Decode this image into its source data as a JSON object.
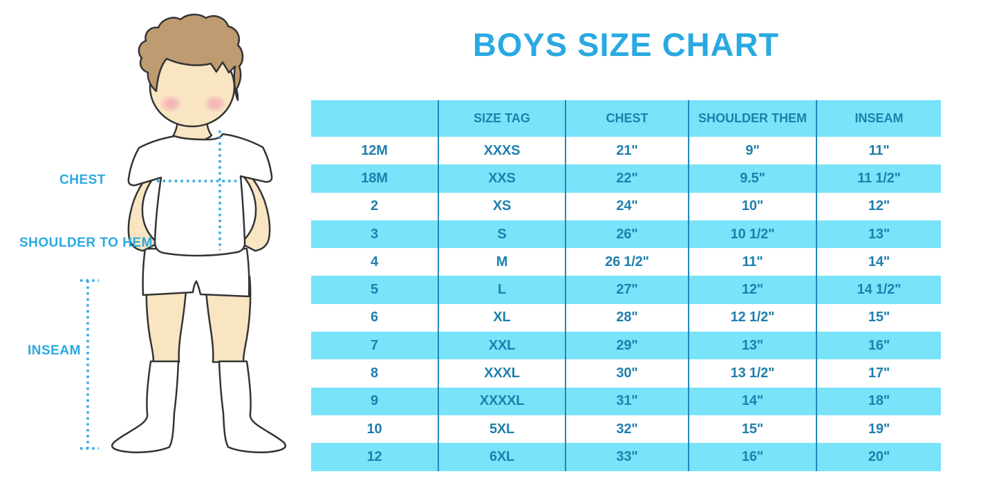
{
  "title": "BOYS SIZE CHART",
  "figure": {
    "chest_label": "CHEST",
    "shoulder_label": "SHOULDER TO HEM",
    "inseam_label": "INSEAM"
  },
  "chart_data": {
    "type": "table",
    "title": "BOYS SIZE CHART",
    "columns": [
      "",
      "SIZE TAG",
      "CHEST",
      "SHOULDER THEM",
      "INSEAM"
    ],
    "rows": [
      [
        "12M",
        "XXXS",
        "21\"",
        "9\"",
        "11\""
      ],
      [
        "18M",
        "XXS",
        "22\"",
        "9.5\"",
        "11 1/2\""
      ],
      [
        "2",
        "XS",
        "24\"",
        "10\"",
        "12\""
      ],
      [
        "3",
        "S",
        "26\"",
        "10 1/2\"",
        "13\""
      ],
      [
        "4",
        "M",
        "26 1/2\"",
        "11\"",
        "14\""
      ],
      [
        "5",
        "L",
        "27\"",
        "12\"",
        "14 1/2\""
      ],
      [
        "6",
        "XL",
        "28\"",
        "12 1/2\"",
        "15\""
      ],
      [
        "7",
        "XXL",
        "29\"",
        "13\"",
        "16\""
      ],
      [
        "8",
        "XXXL",
        "30\"",
        "13 1/2\"",
        "17\""
      ],
      [
        "9",
        "XXXXL",
        "31\"",
        "14\"",
        "18\""
      ],
      [
        "10",
        "5XL",
        "32\"",
        "15\"",
        "19\""
      ],
      [
        "12",
        "6XL",
        "33\"",
        "16\"",
        "20\""
      ]
    ],
    "layout": {
      "stripe_pattern": "alternating white/blue starting white",
      "grid": "vertical column separators only"
    }
  },
  "colors": {
    "accent_blue": "#29A9E1",
    "row_blue": "#79E3F9",
    "table_text_blue": "#1E7FAE",
    "grid_line_blue": "#1E87C0",
    "hair_brown": "#BE9B70",
    "skin": "#F9E5C2",
    "blush_pink": "#F2A3B3"
  }
}
